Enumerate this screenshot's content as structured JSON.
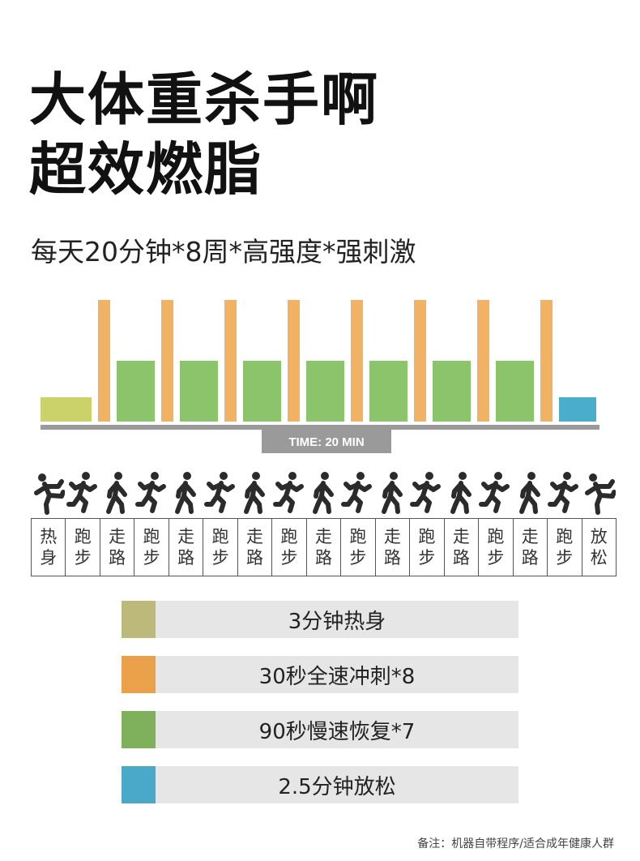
{
  "title_lines": [
    "大体重杀手啊",
    "超效燃脂"
  ],
  "subtitle": "每天20分钟*8周*高强度*强刺激",
  "colors": {
    "warmup": "#cbd26a",
    "sprint": "#f1b263",
    "recover": "#8cc46c",
    "cooldown": "#4aadc9",
    "legend_warmup": "#bdb97a",
    "legend_sprint": "#eaa14a",
    "legend_recover": "#7fb05c",
    "legend_cooldown": "#4aa9c8",
    "axis": "#9a9a9a",
    "figure": "#2b2b2b"
  },
  "chart_data": {
    "type": "bar",
    "axis_label": "TIME: 20 MIN",
    "segments": [
      {
        "kind": "warmup",
        "level": 1
      },
      {
        "kind": "sprint",
        "level": 5
      },
      {
        "kind": "recover",
        "level": 2.5
      },
      {
        "kind": "sprint",
        "level": 5
      },
      {
        "kind": "recover",
        "level": 2.5
      },
      {
        "kind": "sprint",
        "level": 5
      },
      {
        "kind": "recover",
        "level": 2.5
      },
      {
        "kind": "sprint",
        "level": 5
      },
      {
        "kind": "recover",
        "level": 2.5
      },
      {
        "kind": "sprint",
        "level": 5
      },
      {
        "kind": "recover",
        "level": 2.5
      },
      {
        "kind": "sprint",
        "level": 5
      },
      {
        "kind": "recover",
        "level": 2.5
      },
      {
        "kind": "sprint",
        "level": 5
      },
      {
        "kind": "recover",
        "level": 2.5
      },
      {
        "kind": "sprint",
        "level": 5
      },
      {
        "kind": "cooldown",
        "level": 1
      }
    ]
  },
  "phases": [
    {
      "l1": "热",
      "l2": "身",
      "icon": "stretch-figure-icon"
    },
    {
      "l1": "跑",
      "l2": "步",
      "icon": "running-figure-icon"
    },
    {
      "l1": "走",
      "l2": "路",
      "icon": "walking-figure-icon"
    },
    {
      "l1": "跑",
      "l2": "步",
      "icon": "running-figure-icon"
    },
    {
      "l1": "走",
      "l2": "路",
      "icon": "walking-figure-icon"
    },
    {
      "l1": "跑",
      "l2": "步",
      "icon": "running-figure-icon"
    },
    {
      "l1": "走",
      "l2": "路",
      "icon": "walking-figure-icon"
    },
    {
      "l1": "跑",
      "l2": "步",
      "icon": "running-figure-icon"
    },
    {
      "l1": "走",
      "l2": "路",
      "icon": "walking-figure-icon"
    },
    {
      "l1": "跑",
      "l2": "步",
      "icon": "running-figure-icon"
    },
    {
      "l1": "走",
      "l2": "路",
      "icon": "walking-figure-icon"
    },
    {
      "l1": "跑",
      "l2": "步",
      "icon": "running-figure-icon"
    },
    {
      "l1": "走",
      "l2": "路",
      "icon": "walking-figure-icon"
    },
    {
      "l1": "跑",
      "l2": "步",
      "icon": "running-figure-icon"
    },
    {
      "l1": "走",
      "l2": "路",
      "icon": "walking-figure-icon"
    },
    {
      "l1": "跑",
      "l2": "步",
      "icon": "running-figure-icon"
    },
    {
      "l1": "放",
      "l2": "松",
      "icon": "stretch-figure-icon"
    }
  ],
  "legend": [
    {
      "label": "3分钟热身",
      "color_key": "legend_warmup"
    },
    {
      "label": "30秒全速冲刺*8",
      "color_key": "legend_sprint"
    },
    {
      "label": "90秒慢速恢复*7",
      "color_key": "legend_recover"
    },
    {
      "label": "2.5分钟放松",
      "color_key": "legend_cooldown"
    }
  ],
  "footnote": "备注：机器自带程序/适合成年健康人群"
}
